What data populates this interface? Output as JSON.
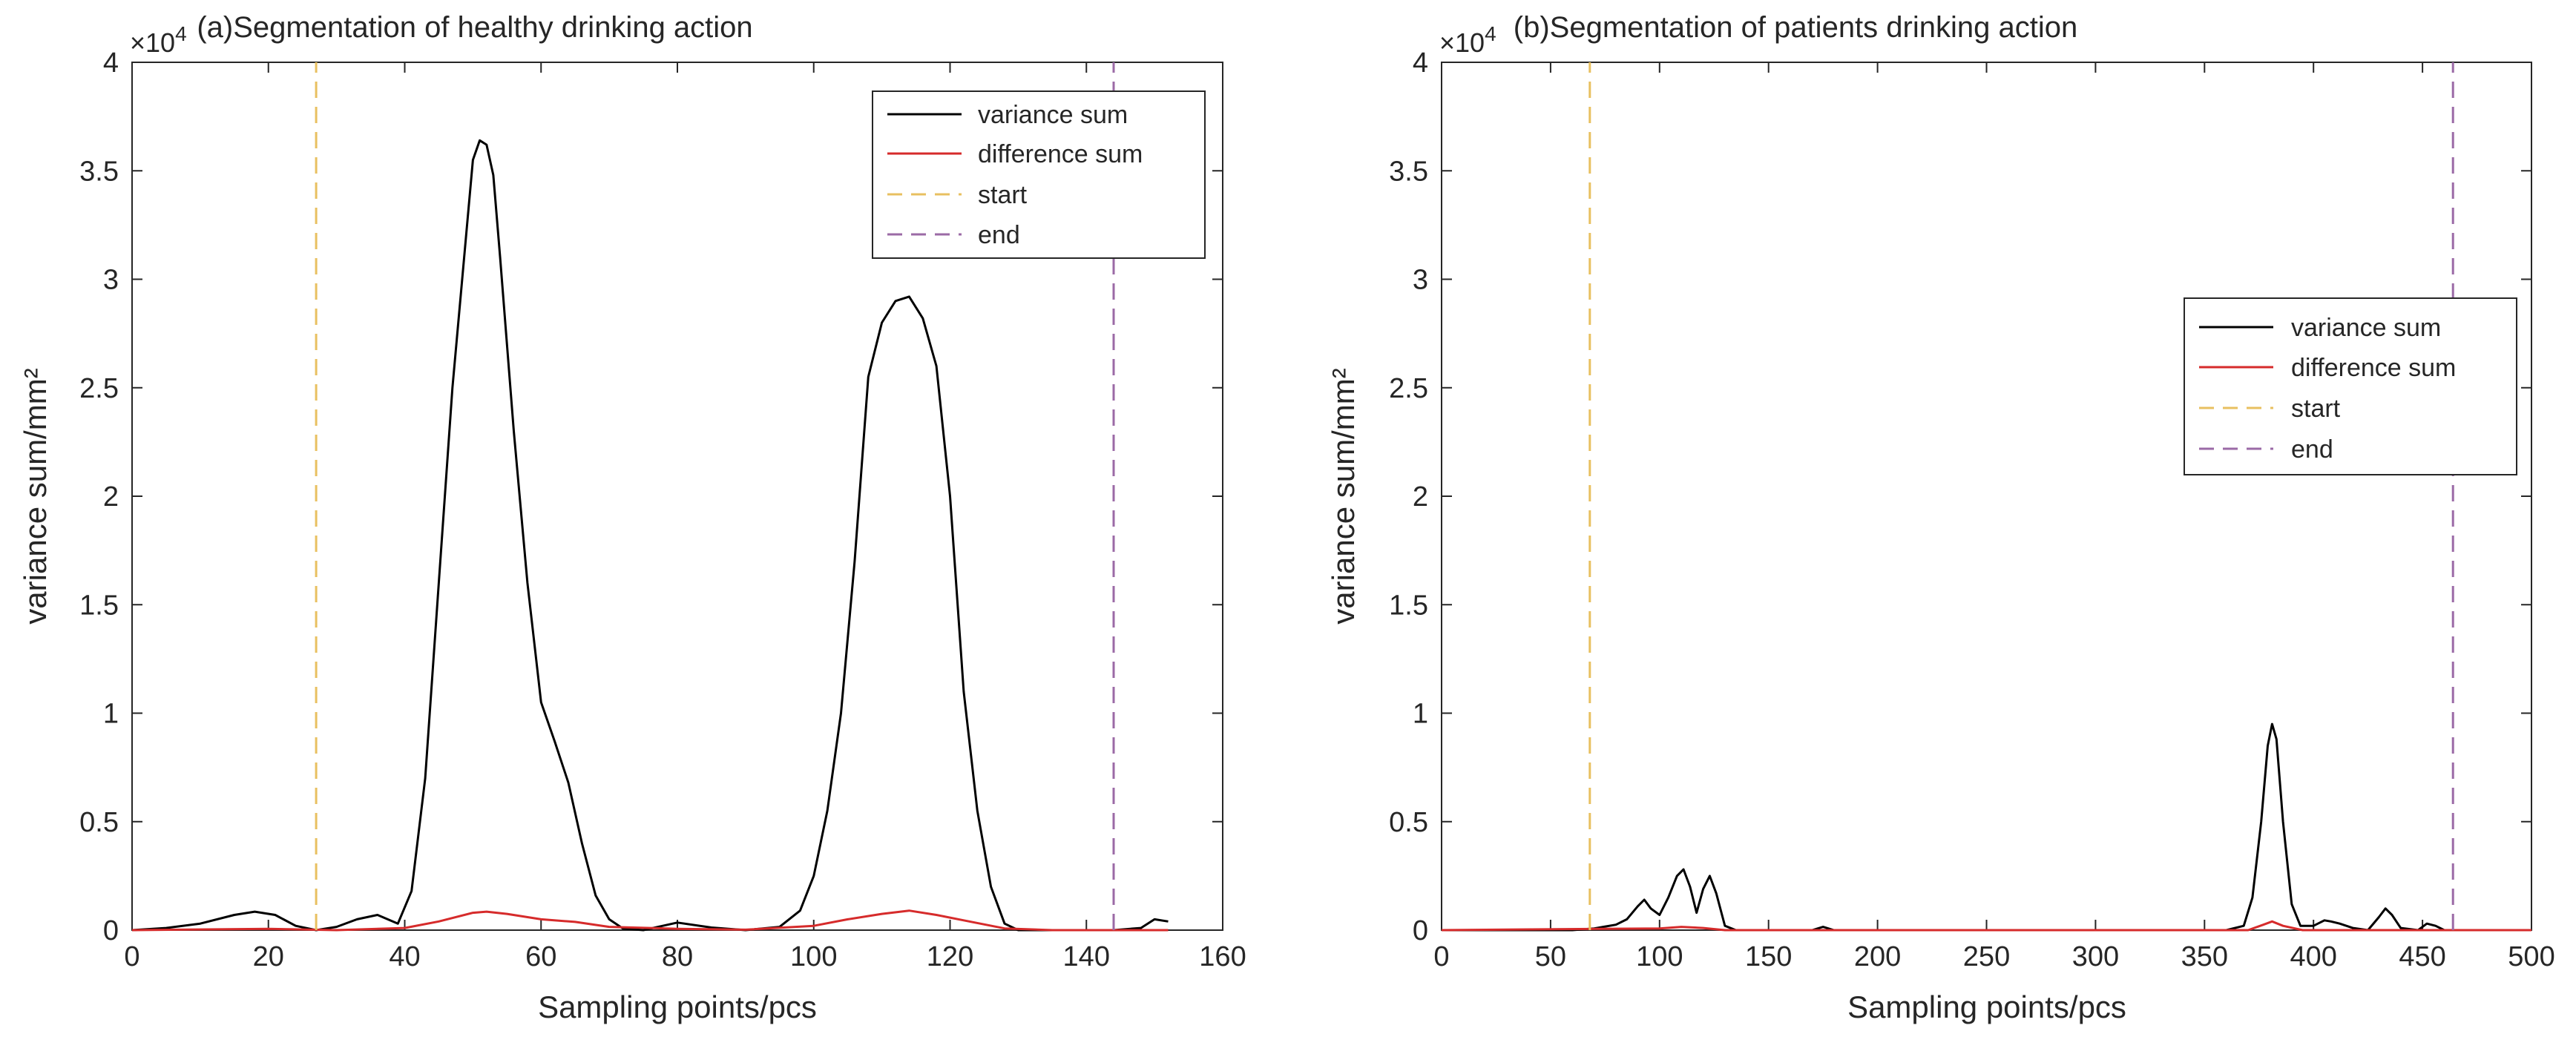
{
  "chart_data": [
    {
      "type": "line",
      "title": "(a)Segmentation of healthy drinking action",
      "xlabel": "Sampling points/pcs",
      "ylabel": "variance sum/mm²",
      "exponent_label": "×10",
      "exponent_power": "4",
      "xlim": [
        0,
        160
      ],
      "ylim": [
        0,
        40000
      ],
      "xticks": [
        "0",
        "20",
        "40",
        "60",
        "80",
        "100",
        "120",
        "140",
        "160"
      ],
      "yticks": [
        "0",
        "0.5",
        "1",
        "1.5",
        "2",
        "2.5",
        "3",
        "3.5",
        "4"
      ],
      "legend_position": "top-right",
      "series": [
        {
          "name": "variance sum",
          "color": "#000000",
          "style": "solid",
          "x": [
            0,
            5,
            10,
            15,
            18,
            21,
            24,
            27,
            30,
            33,
            36,
            39,
            41,
            43,
            45,
            47,
            49,
            50,
            51,
            52,
            53,
            54,
            56,
            58,
            60,
            62,
            64,
            66,
            68,
            70,
            72,
            75,
            80,
            85,
            90,
            95,
            98,
            100,
            102,
            104,
            106,
            108,
            110,
            112,
            114,
            116,
            118,
            120,
            122,
            124,
            126,
            128,
            130,
            133,
            138,
            144,
            148,
            150,
            152
          ],
          "values": [
            0,
            100,
            300,
            700,
            850,
            700,
            200,
            0,
            150,
            500,
            700,
            300,
            1800,
            7000,
            16000,
            25000,
            32000,
            35500,
            36400,
            36200,
            34800,
            31000,
            23000,
            16000,
            10500,
            8700,
            6800,
            4000,
            1600,
            500,
            80,
            0,
            350,
            120,
            0,
            150,
            900,
            2500,
            5500,
            10000,
            17000,
            25500,
            28000,
            29000,
            29200,
            28200,
            26000,
            20000,
            11000,
            5500,
            2000,
            300,
            0,
            0,
            0,
            0,
            100,
            500,
            400
          ]
        },
        {
          "name": "difference sum",
          "color": "#d62b2b",
          "style": "solid",
          "x": [
            0,
            20,
            30,
            40,
            45,
            50,
            52,
            55,
            60,
            65,
            70,
            80,
            90,
            100,
            105,
            110,
            114,
            118,
            122,
            128,
            135,
            145,
            152
          ],
          "values": [
            0,
            60,
            0,
            100,
            400,
            800,
            850,
            750,
            500,
            380,
            150,
            60,
            20,
            200,
            500,
            750,
            900,
            700,
            450,
            80,
            0,
            0,
            0
          ]
        },
        {
          "name": "start",
          "color": "#e8c060",
          "style": "dashed",
          "x": [
            27,
            27
          ],
          "values": [
            0,
            40000
          ]
        },
        {
          "name": "end",
          "color": "#9b6aa6",
          "style": "dashed",
          "x": [
            144,
            144
          ],
          "values": [
            0,
            40000
          ]
        }
      ]
    },
    {
      "type": "line",
      "title": "(b)Segmentation of patients drinking action",
      "xlabel": "Sampling points/pcs",
      "ylabel": "variance sum/mm²",
      "exponent_label": "×10",
      "exponent_power": "4",
      "xlim": [
        0,
        500
      ],
      "ylim": [
        0,
        40000
      ],
      "xticks": [
        "0",
        "50",
        "100",
        "150",
        "200",
        "250",
        "300",
        "350",
        "400",
        "450",
        "500"
      ],
      "yticks": [
        "0",
        "0.5",
        "1",
        "1.5",
        "2",
        "2.5",
        "3",
        "3.5",
        "4"
      ],
      "legend_position": "right",
      "series": [
        {
          "name": "variance sum",
          "color": "#000000",
          "style": "solid",
          "x": [
            0,
            60,
            70,
            80,
            85,
            90,
            93,
            96,
            100,
            104,
            108,
            111,
            114,
            117,
            120,
            123,
            126,
            130,
            135,
            140,
            170,
            175,
            180,
            200,
            360,
            368,
            372,
            376,
            379,
            381,
            383,
            386,
            390,
            394,
            400,
            405,
            408,
            412,
            418,
            425,
            430,
            433,
            436,
            440,
            448,
            452,
            456,
            460,
            480,
            500
          ],
          "values": [
            0,
            0,
            80,
            250,
            500,
            1100,
            1400,
            1000,
            700,
            1500,
            2500,
            2800,
            2000,
            800,
            1900,
            2500,
            1700,
            200,
            0,
            0,
            0,
            150,
            0,
            0,
            0,
            200,
            1500,
            5000,
            8500,
            9500,
            8800,
            5000,
            1200,
            200,
            200,
            450,
            400,
            300,
            100,
            0,
            600,
            1000,
            700,
            100,
            0,
            300,
            200,
            0,
            0,
            0
          ]
        },
        {
          "name": "difference sum",
          "color": "#d62b2b",
          "style": "solid",
          "x": [
            0,
            100,
            110,
            120,
            130,
            370,
            377,
            381,
            386,
            395,
            500
          ],
          "values": [
            0,
            80,
            150,
            100,
            0,
            0,
            250,
            400,
            200,
            0,
            0
          ]
        },
        {
          "name": "start",
          "color": "#e8c060",
          "style": "dashed",
          "x": [
            68,
            68
          ],
          "values": [
            0,
            40000
          ]
        },
        {
          "name": "end",
          "color": "#9b6aa6",
          "style": "dashed",
          "x": [
            464,
            464
          ],
          "values": [
            0,
            40000
          ]
        }
      ]
    }
  ]
}
